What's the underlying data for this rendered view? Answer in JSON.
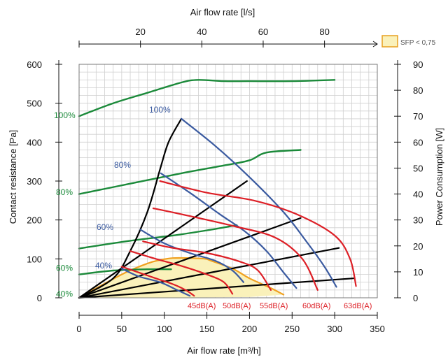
{
  "chart_data": {
    "type": "line",
    "title": "",
    "x_bottom": {
      "label": "Air flow rate [m³/h]",
      "range": [
        0,
        350
      ],
      "ticks": [
        0,
        50,
        100,
        150,
        200,
        250,
        300,
        350
      ]
    },
    "x_top": {
      "label": "Air flow rate [l/s]",
      "range": [
        0,
        97.2
      ],
      "ticks": [
        20,
        40,
        60,
        80
      ]
    },
    "y_left": {
      "label": "Contact resistance [Pa]",
      "range": [
        0,
        600
      ],
      "ticks": [
        0,
        100,
        200,
        300,
        400,
        500,
        600
      ]
    },
    "y_right": {
      "label": "Power Consumption [W]",
      "range": [
        0,
        90
      ],
      "ticks": [
        0,
        10,
        20,
        30,
        40,
        50,
        60,
        70,
        80,
        90
      ]
    },
    "grid": true,
    "legend": {
      "position": "top-right",
      "entries": [
        {
          "label": "SFP < 0,75",
          "color": "#fbeea0",
          "stroke": "#e8a020"
        }
      ]
    },
    "colors": {
      "power": "#1b8a3a",
      "fan": "#3a5aa0",
      "sound": "#dd1f26",
      "system": "#000000",
      "sfp": "#f0a020",
      "sfp_fill": "#faf1ba"
    },
    "power_curves": [
      {
        "name": "100%",
        "x": [
          0,
          40,
          80,
          120,
          140,
          170,
          200,
          250,
          300
        ],
        "y": [
          70,
          75,
          79,
          83,
          84,
          83.5,
          83.5,
          83.5,
          84
        ]
      },
      {
        "name": "80%",
        "x": [
          0,
          60,
          120,
          170,
          200,
          220,
          260
        ],
        "y": [
          40,
          44,
          48,
          51,
          53,
          56,
          57
        ]
      },
      {
        "name": "60%",
        "x": [
          0,
          60,
          110,
          150,
          185
        ],
        "y": [
          19,
          22,
          24,
          26,
          28
        ]
      },
      {
        "name": "40%",
        "x": [
          0,
          40,
          80,
          108
        ],
        "y": [
          9,
          10.5,
          11,
          11
        ]
      }
    ],
    "fan_curves": [
      {
        "name": "100%",
        "x": [
          120,
          160,
          200,
          240,
          265,
          288,
          302
        ],
        "y": [
          460,
          390,
          310,
          220,
          150,
          80,
          28
        ]
      },
      {
        "name": "80%",
        "x": [
          96,
          130,
          165,
          195,
          220,
          240,
          255
        ],
        "y": [
          320,
          270,
          215,
          170,
          120,
          65,
          25
        ]
      },
      {
        "name": "60%",
        "x": [
          72,
          100,
          130,
          160,
          180,
          193
        ],
        "y": [
          175,
          140,
          115,
          95,
          70,
          40
        ]
      },
      {
        "name": "40%",
        "x": [
          50,
          70,
          95,
          115,
          130
        ],
        "y": [
          75,
          55,
          40,
          20,
          5
        ]
      }
    ],
    "system_curves": [
      {
        "x": [
          0,
          40,
          60,
          80,
          95,
          105,
          120
        ],
        "y": [
          0,
          50,
          120,
          220,
          330,
          400,
          460
        ]
      },
      {
        "x": [
          0,
          197
        ],
        "y": [
          0,
          300
        ]
      },
      {
        "x": [
          0,
          260
        ],
        "y": [
          0,
          205
        ]
      },
      {
        "x": [
          0,
          305
        ],
        "y": [
          0,
          128
        ]
      },
      {
        "x": [
          0,
          322
        ],
        "y": [
          0,
          50
        ]
      }
    ],
    "sound_curves": [
      {
        "name": "45dB(A)",
        "x": [
          50,
          70,
          90,
          110,
          125,
          135
        ],
        "y": [
          80,
          65,
          50,
          35,
          20,
          5
        ]
      },
      {
        "name": "50dB(A)",
        "x": [
          60,
          90,
          120,
          150,
          170,
          180
        ],
        "y": [
          120,
          100,
          82,
          60,
          40,
          10
        ]
      },
      {
        "name": "55dB(A)",
        "x": [
          75,
          110,
          150,
          190,
          210,
          225
        ],
        "y": [
          145,
          128,
          115,
          92,
          70,
          20
        ]
      },
      {
        "name": "60dB(A)",
        "x": [
          87,
          130,
          180,
          230,
          262,
          280
        ],
        "y": [
          230,
          210,
          185,
          155,
          100,
          20
        ]
      },
      {
        "name": "63dB(A)",
        "x": [
          95,
          150,
          205,
          255,
          300,
          318,
          325
        ],
        "y": [
          300,
          270,
          250,
          215,
          160,
          100,
          30
        ]
      }
    ],
    "sfp_region": {
      "label": "SFP < 0,75",
      "x": [
        0,
        50,
        80,
        95,
        110,
        130,
        148,
        155,
        180,
        200,
        225,
        240,
        200,
        150,
        100,
        50,
        0
      ],
      "y": [
        0,
        60,
        88,
        97,
        102,
        102,
        100,
        95,
        75,
        50,
        25,
        8,
        2,
        1,
        0.5,
        0.2,
        0
      ]
    },
    "labels": {
      "power": [
        "100%",
        "80%",
        "60%",
        "40%"
      ],
      "fan": [
        "100%",
        "80%",
        "60%",
        "40%"
      ],
      "sound": [
        "45dB(A)",
        "50dB(A)",
        "55dB(A)",
        "60dB(A)",
        "63dB(A)"
      ]
    }
  }
}
